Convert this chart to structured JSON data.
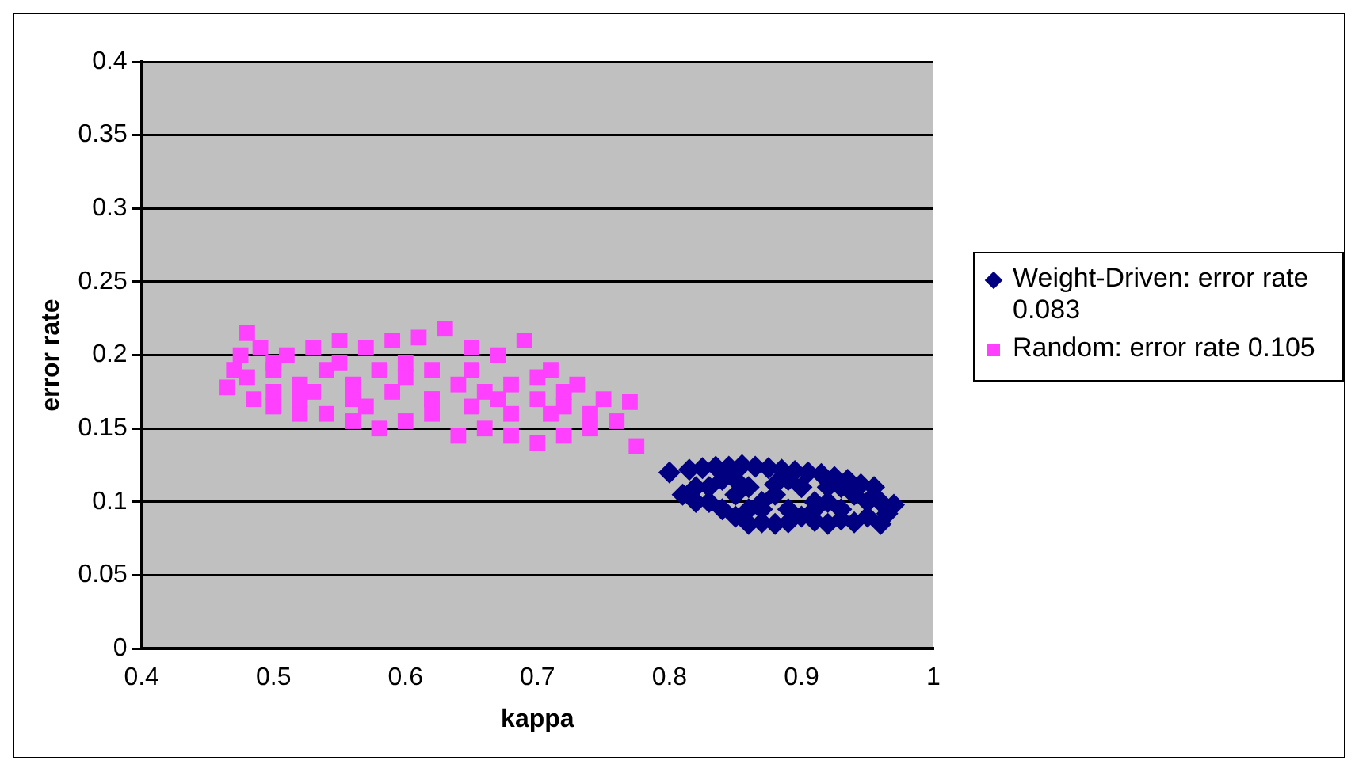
{
  "chart_data": {
    "type": "scatter",
    "xlabel": "kappa",
    "ylabel": "error rate",
    "xlim": [
      0.4,
      1
    ],
    "xticks": [
      0.4,
      0.5,
      0.6,
      0.7,
      0.8,
      0.9,
      1
    ],
    "ylim": [
      0,
      0.4
    ],
    "yticks": [
      0,
      0.05,
      0.1,
      0.15,
      0.2,
      0.25,
      0.3,
      0.35,
      0.4
    ],
    "grid": "y",
    "legend": "right",
    "series": [
      {
        "name": "Weight-Driven: error rate 0.083",
        "color": "#000080",
        "marker": "diamond",
        "x": [
          0.8,
          0.81,
          0.815,
          0.82,
          0.825,
          0.83,
          0.835,
          0.84,
          0.845,
          0.85,
          0.855,
          0.86,
          0.865,
          0.87,
          0.875,
          0.88,
          0.885,
          0.89,
          0.895,
          0.905,
          0.91,
          0.915,
          0.92,
          0.925,
          0.93,
          0.935,
          0.94,
          0.945,
          0.95,
          0.955,
          0.96,
          0.965,
          0.97,
          0.82,
          0.84,
          0.86,
          0.88,
          0.9,
          0.92,
          0.83,
          0.85,
          0.87,
          0.89,
          0.91,
          0.93,
          0.95,
          0.86,
          0.88,
          0.9,
          0.92,
          0.94,
          0.96,
          0.85,
          0.87,
          0.89,
          0.91,
          0.93
        ],
        "values": [
          0.12,
          0.105,
          0.122,
          0.1,
          0.123,
          0.11,
          0.124,
          0.095,
          0.124,
          0.09,
          0.125,
          0.085,
          0.124,
          0.086,
          0.123,
          0.085,
          0.122,
          0.086,
          0.121,
          0.12,
          0.087,
          0.119,
          0.085,
          0.117,
          0.088,
          0.115,
          0.086,
          0.112,
          0.09,
          0.11,
          0.085,
          0.092,
          0.098,
          0.11,
          0.115,
          0.11,
          0.105,
          0.11,
          0.1,
          0.1,
          0.105,
          0.1,
          0.095,
          0.1,
          0.095,
          0.1,
          0.095,
          0.112,
          0.09,
          0.11,
          0.105,
          0.1,
          0.115,
          0.095,
          0.115,
          0.095,
          0.11
        ]
      },
      {
        "name": "Random: error rate 0.105",
        "color": "#ff40ff",
        "marker": "square",
        "x": [
          0.465,
          0.47,
          0.475,
          0.48,
          0.485,
          0.49,
          0.5,
          0.51,
          0.52,
          0.53,
          0.54,
          0.55,
          0.56,
          0.57,
          0.58,
          0.59,
          0.6,
          0.61,
          0.62,
          0.63,
          0.64,
          0.65,
          0.66,
          0.67,
          0.68,
          0.69,
          0.7,
          0.71,
          0.72,
          0.73,
          0.74,
          0.75,
          0.76,
          0.77,
          0.775,
          0.48,
          0.5,
          0.52,
          0.54,
          0.56,
          0.58,
          0.6,
          0.62,
          0.64,
          0.66,
          0.68,
          0.7,
          0.72,
          0.74,
          0.5,
          0.53,
          0.56,
          0.59,
          0.62,
          0.65,
          0.68,
          0.71,
          0.5,
          0.55,
          0.6,
          0.65,
          0.7,
          0.52,
          0.57,
          0.62,
          0.67,
          0.72
        ],
        "values": [
          0.178,
          0.19,
          0.2,
          0.215,
          0.17,
          0.205,
          0.165,
          0.2,
          0.16,
          0.205,
          0.16,
          0.21,
          0.155,
          0.205,
          0.15,
          0.21,
          0.155,
          0.212,
          0.16,
          0.218,
          0.145,
          0.205,
          0.15,
          0.2,
          0.145,
          0.21,
          0.14,
          0.19,
          0.145,
          0.18,
          0.15,
          0.17,
          0.155,
          0.168,
          0.138,
          0.185,
          0.19,
          0.18,
          0.19,
          0.18,
          0.19,
          0.185,
          0.19,
          0.18,
          0.175,
          0.18,
          0.17,
          0.165,
          0.16,
          0.175,
          0.175,
          0.17,
          0.175,
          0.17,
          0.165,
          0.16,
          0.16,
          0.195,
          0.195,
          0.195,
          0.19,
          0.185,
          0.17,
          0.165,
          0.17,
          0.17,
          0.175
        ]
      }
    ]
  }
}
